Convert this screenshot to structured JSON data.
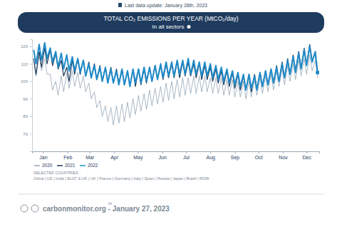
{
  "chart_data": {
    "type": "line",
    "header": "Last data update: January 28th, 2023",
    "title": "TOTAL CO₂ EMISSIONS PER YEAR (MtCO₂/day)",
    "subtitle": "In all sectors",
    "annotations": [
      "SELECTED COUNTRIES :",
      "China | US | India | EU27 & UK | UK | France | Germany | Italy | Spain | Russia | Japan | Brazil | ROW"
    ],
    "footer": "carbonmonitor.org - January 27, 2023",
    "footer_superscript": "th",
    "x": [
      3,
      6,
      10,
      13,
      17,
      20,
      24,
      27,
      31,
      34,
      38,
      41,
      45,
      48,
      52,
      55,
      59,
      62,
      66,
      69,
      73,
      76,
      80,
      83,
      87,
      90,
      94,
      97,
      101,
      104,
      108,
      111,
      115,
      118,
      122,
      125,
      129,
      132,
      136,
      139,
      143,
      146,
      150,
      153,
      157,
      160,
      164,
      167,
      171,
      174,
      178,
      181,
      185,
      188,
      192,
      195,
      199,
      202,
      206,
      209,
      213,
      216,
      220,
      223,
      227,
      230,
      234,
      237,
      241,
      244,
      248,
      251,
      255,
      258,
      262,
      265,
      269,
      272,
      276,
      279,
      283,
      286,
      290,
      293,
      297,
      300,
      304,
      307,
      311,
      314,
      318,
      321,
      325,
      328,
      332,
      335,
      339,
      342,
      346,
      349,
      353,
      356,
      360,
      363
    ],
    "xlim": [
      1,
      365
    ],
    "xticks": [
      {
        "value": 15,
        "label": "Jan"
      },
      {
        "value": 46,
        "label": "Feb"
      },
      {
        "value": 74,
        "label": "Mar"
      },
      {
        "value": 105,
        "label": "Apr"
      },
      {
        "value": 135,
        "label": "May"
      },
      {
        "value": 166,
        "label": "Jun"
      },
      {
        "value": 196,
        "label": "Jul"
      },
      {
        "value": 227,
        "label": "Aug"
      },
      {
        "value": 258,
        "label": "Sep"
      },
      {
        "value": 288,
        "label": "Oct"
      },
      {
        "value": 319,
        "label": "Nov"
      },
      {
        "value": 349,
        "label": "Dec"
      }
    ],
    "ylim": [
      60,
      124
    ],
    "yticks": [
      70,
      80,
      90,
      100,
      110,
      120
    ],
    "grid": false,
    "legend": "bottom",
    "series": [
      {
        "name": "2020",
        "color": "#93a6b6",
        "values": [
          112,
          103,
          115,
          106,
          113,
          104,
          104,
          95,
          100,
          92,
          103,
          94,
          105,
          96,
          106,
          97,
          105,
          96,
          103,
          94,
          99,
          90,
          94,
          85,
          89,
          80,
          86,
          77,
          85,
          75,
          86,
          76,
          87,
          77,
          88,
          79,
          90,
          81,
          92,
          83,
          93,
          84,
          95,
          86,
          96,
          87,
          97,
          88,
          99,
          89,
          100,
          90,
          101,
          91,
          102,
          92,
          102,
          93,
          103,
          93,
          103,
          94,
          103,
          94,
          102,
          93,
          102,
          93,
          102,
          92,
          101,
          92,
          101,
          91,
          100,
          91,
          100,
          90,
          100,
          91,
          101,
          92,
          102,
          93,
          103,
          94,
          104,
          95,
          106,
          97,
          107,
          98,
          109,
          100,
          110,
          101,
          112,
          103,
          113,
          104,
          115,
          106,
          112,
          102
        ]
      },
      {
        "name": "2021",
        "color": "#1d3a5c",
        "values": [
          113,
          104,
          117,
          108,
          119,
          110,
          118,
          109,
          116,
          107,
          112,
          103,
          108,
          100,
          112,
          104,
          113,
          104,
          112,
          103,
          111,
          102,
          110,
          101,
          109,
          100,
          108,
          100,
          108,
          99,
          107,
          99,
          107,
          98,
          106,
          98,
          106,
          97,
          107,
          98,
          107,
          99,
          108,
          100,
          109,
          101,
          109,
          101,
          110,
          102,
          110,
          102,
          111,
          102,
          111,
          103,
          111,
          103,
          110,
          102,
          110,
          101,
          109,
          101,
          108,
          100,
          107,
          99,
          106,
          98,
          106,
          97,
          105,
          96,
          104,
          95,
          103,
          95,
          103,
          94,
          104,
          96,
          105,
          97,
          106,
          98,
          107,
          99,
          109,
          100,
          111,
          102,
          113,
          104,
          115,
          106,
          117,
          108,
          119,
          110,
          121,
          112,
          116,
          104
        ]
      },
      {
        "name": "2022",
        "color": "#1f8bc9",
        "marker": "last",
        "values": [
          118,
          110,
          121,
          112,
          122,
          113,
          119,
          111,
          117,
          108,
          116,
          107,
          115,
          106,
          114,
          106,
          113,
          105,
          112,
          103,
          110,
          102,
          109,
          101,
          108,
          100,
          108,
          99,
          107,
          99,
          106,
          98,
          107,
          98,
          106,
          97,
          107,
          99,
          107,
          99,
          108,
          100,
          108,
          100,
          109,
          101,
          110,
          102,
          111,
          103,
          111,
          103,
          112,
          104,
          112,
          104,
          113,
          104,
          112,
          104,
          111,
          103,
          111,
          103,
          110,
          102,
          109,
          101,
          108,
          100,
          107,
          99,
          106,
          98,
          105,
          97,
          104,
          95,
          104,
          96,
          103,
          95,
          105,
          97,
          106,
          98,
          107,
          99,
          108,
          100,
          110,
          102,
          112,
          104,
          114,
          105,
          116,
          107,
          118,
          109,
          120,
          111,
          117,
          105
        ]
      }
    ]
  }
}
